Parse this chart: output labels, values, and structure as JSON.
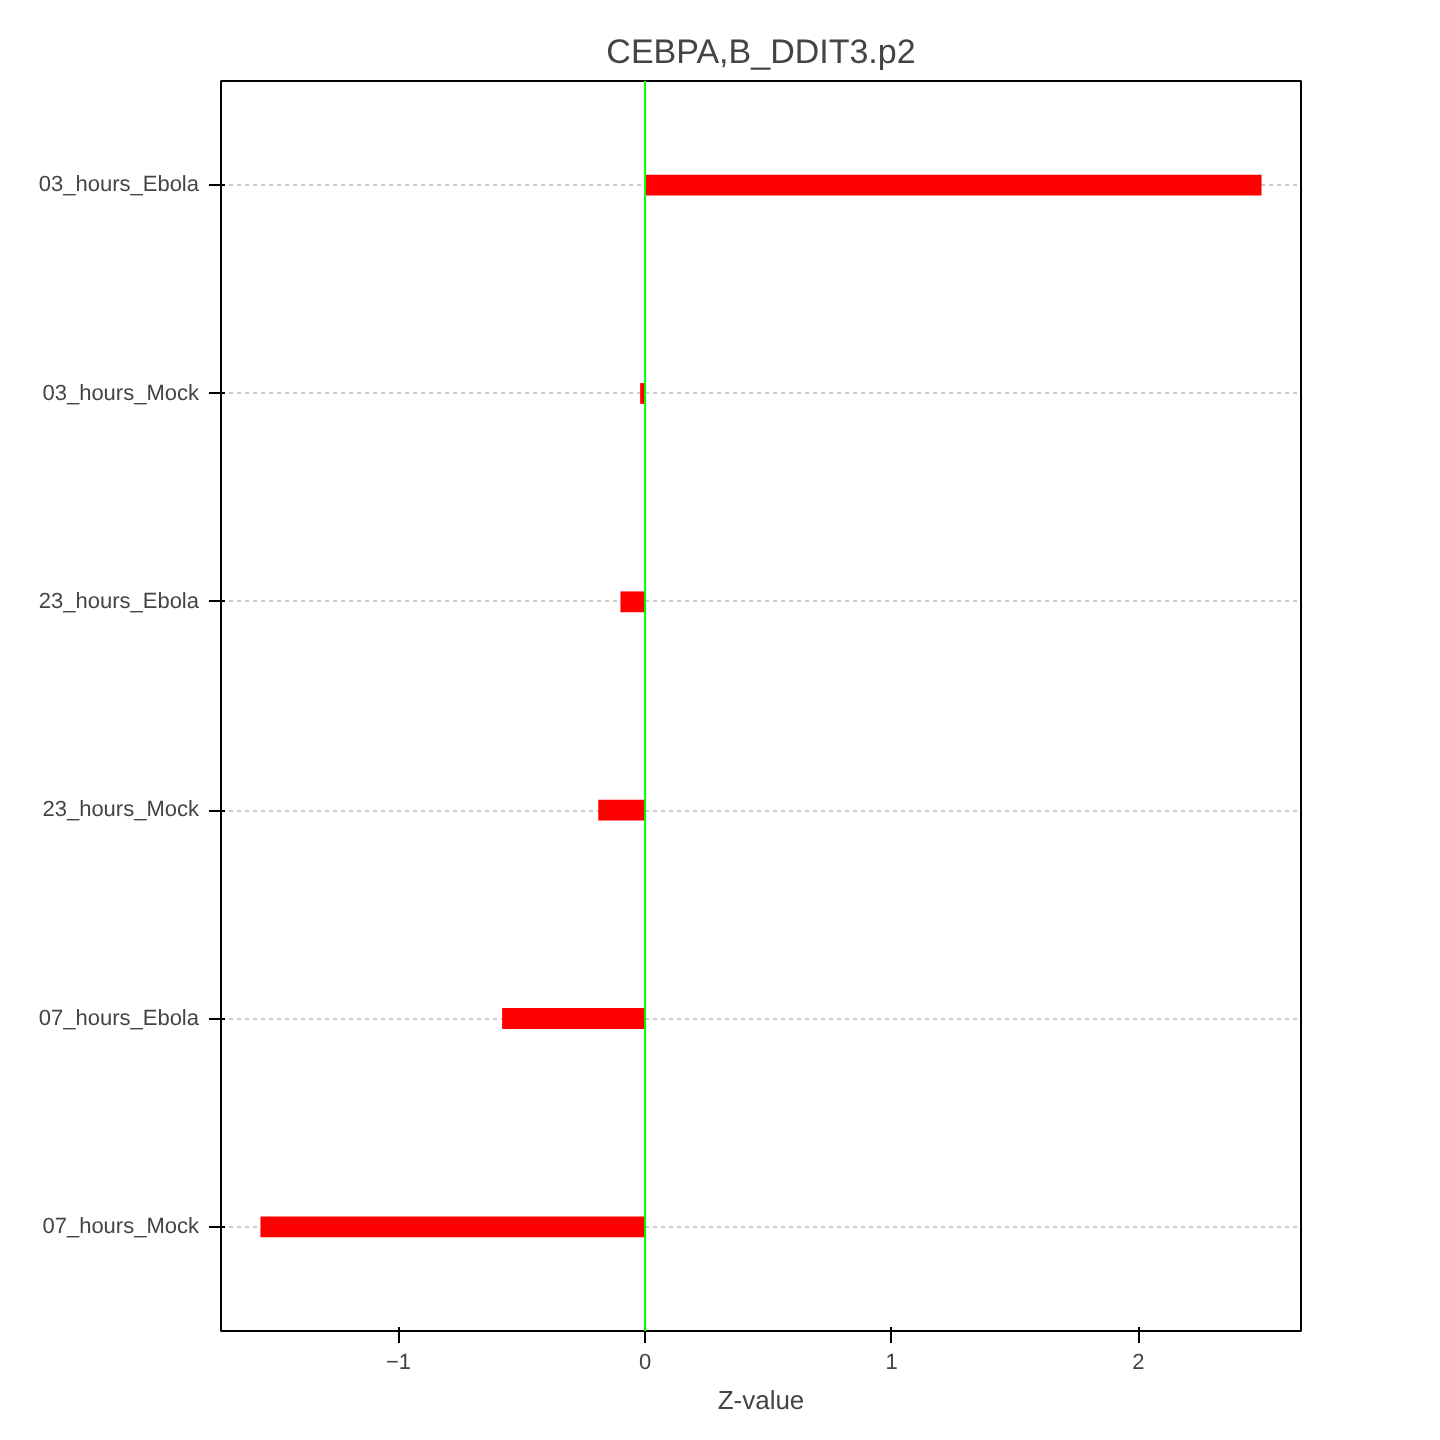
{
  "chart_data": {
    "type": "bar",
    "orientation": "horizontal",
    "title": "CEBPA,B_DDIT3.p2",
    "xlabel": "Z-value",
    "categories": [
      "03_hours_Ebola",
      "03_hours_Mock",
      "23_hours_Ebola",
      "23_hours_Mock",
      "07_hours_Ebola",
      "07_hours_Mock"
    ],
    "values": [
      2.5,
      -0.02,
      -0.1,
      -0.19,
      -0.58,
      -1.56
    ],
    "color": "#ff0000",
    "xlim": [
      -1.72,
      2.66
    ],
    "xticks": [
      -1,
      0,
      1,
      2
    ],
    "grid": "y",
    "ref_lines": [
      {
        "axis": "x",
        "value": 0,
        "color": "#00ff00"
      }
    ]
  }
}
